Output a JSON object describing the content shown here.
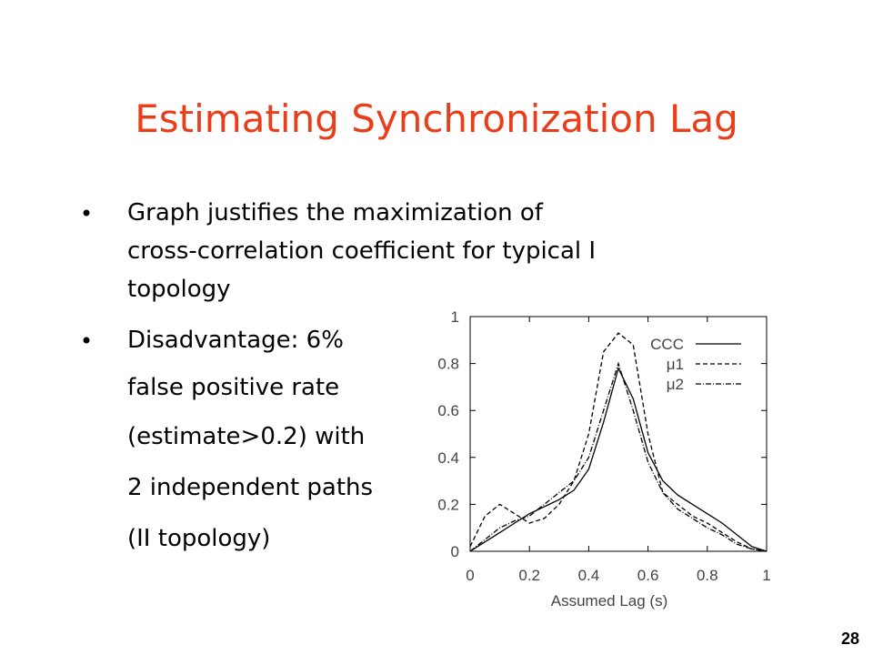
{
  "slide": {
    "title": "Estimating Synchronization Lag",
    "bullets": [
      {
        "lines": [
          "Graph justifies the maximization of",
          "cross-correlation coefficient for typical I",
          "topology"
        ]
      },
      {
        "lines": [
          "Disadvantage: 6%",
          "false positive rate",
          "(estimate>0.2) with",
          "2 independent paths",
          "(II topology)"
        ]
      }
    ],
    "page_number": "28"
  },
  "chart_data": {
    "type": "line",
    "x_label": "Assumed Lag (s)",
    "x": [
      0,
      0.05,
      0.1,
      0.15,
      0.2,
      0.25,
      0.3,
      0.35,
      0.4,
      0.45,
      0.5,
      0.55,
      0.6,
      0.65,
      0.7,
      0.75,
      0.8,
      0.85,
      0.9,
      0.95,
      1
    ],
    "series": [
      {
        "name": "CCC",
        "color": "#000000",
        "dash": "solid",
        "values": [
          0,
          0.04,
          0.08,
          0.12,
          0.16,
          0.19,
          0.22,
          0.26,
          0.35,
          0.55,
          0.78,
          0.65,
          0.42,
          0.3,
          0.24,
          0.2,
          0.16,
          0.12,
          0.07,
          0.02,
          0
        ]
      },
      {
        "name": "μ1",
        "color": "#000000",
        "dash": "dashed",
        "values": [
          0.02,
          0.15,
          0.2,
          0.16,
          0.12,
          0.14,
          0.2,
          0.3,
          0.5,
          0.85,
          0.93,
          0.88,
          0.5,
          0.25,
          0.2,
          0.15,
          0.12,
          0.08,
          0.04,
          0.01,
          0
        ]
      },
      {
        "name": "μ2",
        "color": "#000000",
        "dash": "dashdot",
        "values": [
          0,
          0.05,
          0.1,
          0.13,
          0.15,
          0.2,
          0.25,
          0.3,
          0.4,
          0.6,
          0.8,
          0.6,
          0.38,
          0.25,
          0.18,
          0.14,
          0.1,
          0.07,
          0.03,
          0.01,
          0
        ]
      }
    ],
    "xlim": [
      0,
      1
    ],
    "ylim": [
      0,
      1
    ],
    "xticks": [
      0,
      0.2,
      0.4,
      0.6,
      0.8,
      1
    ],
    "yticks": [
      0,
      0.2,
      0.4,
      0.6,
      0.8,
      1
    ],
    "legend": "upper right"
  }
}
